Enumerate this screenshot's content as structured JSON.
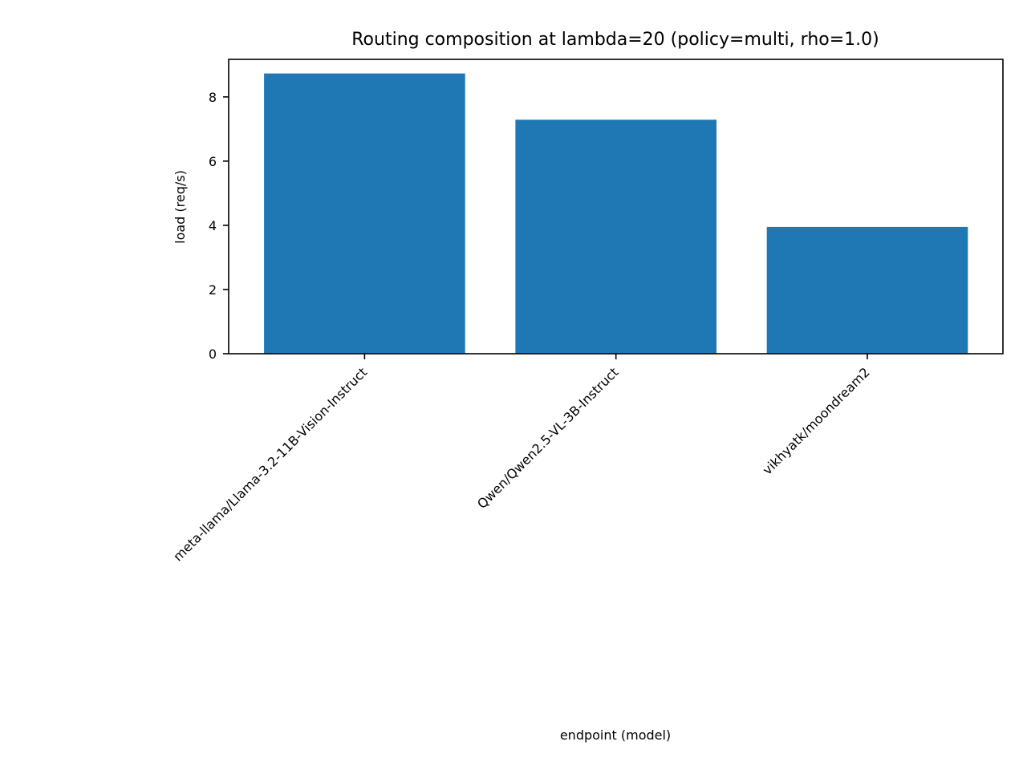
{
  "chart_data": {
    "type": "bar",
    "title": "Routing composition at lambda=20 (policy=multi, rho=1.0)",
    "xlabel": "endpoint (model)",
    "ylabel": "load (req/s)",
    "categories": [
      "meta-llama/Llama-3.2-11B-Vision-Instruct",
      "Qwen/Qwen2.5-VL-3B-Instruct",
      "vikhyatk/moondream2"
    ],
    "values": [
      8.73,
      7.29,
      3.95
    ],
    "ylim": [
      0,
      9.17
    ],
    "yticks": [
      "0",
      "2",
      "4",
      "6",
      "8"
    ],
    "grid": false,
    "legend": "none",
    "bar_color": "#1f77b4"
  }
}
